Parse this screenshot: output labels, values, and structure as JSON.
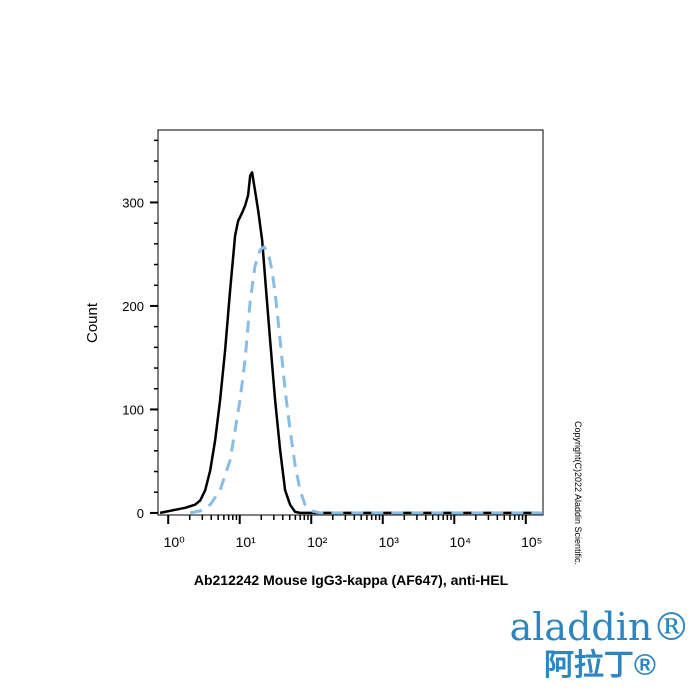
{
  "chart_data": {
    "type": "line",
    "ylabel": "Count",
    "xlabel": "Ab212242 Mouse IgG3-kappa (AF647), anti-HEL",
    "log_x": true,
    "xlim": [
      0.72,
      174000
    ],
    "ylim": [
      -2,
      370
    ],
    "xticks": [
      {
        "value": 1,
        "label": "10⁰"
      },
      {
        "value": 10,
        "label": "10¹"
      },
      {
        "value": 100,
        "label": "10²"
      },
      {
        "value": 1000,
        "label": "10³"
      },
      {
        "value": 10000,
        "label": "10⁴"
      },
      {
        "value": 100000,
        "label": "10⁵"
      }
    ],
    "xminorticks": [
      2,
      3,
      4,
      5,
      6,
      7,
      8,
      9,
      20,
      30,
      40,
      50,
      60,
      70,
      80,
      90,
      200,
      300,
      400,
      500,
      600,
      700,
      800,
      900,
      2000,
      3000,
      4000,
      5000,
      6000,
      7000,
      8000,
      9000,
      20000,
      30000,
      40000,
      50000,
      60000,
      70000,
      80000,
      90000
    ],
    "yticks": [
      0,
      100,
      200,
      300
    ],
    "yminorticks": [
      20,
      40,
      60,
      80,
      120,
      140,
      160,
      180,
      220,
      240,
      260,
      280,
      320,
      340,
      360
    ],
    "series": [
      {
        "color": "#000000",
        "dash": false,
        "x": [
          0.77,
          1.25,
          1.73,
          2.38,
          2.8,
          3.29,
          3.86,
          4.53,
          5.32,
          6.25,
          7.34,
          8.63,
          9.5,
          10.8,
          11.9,
          13.1,
          14.0,
          14.9,
          16.4,
          18.1,
          20.6,
          23.4,
          26.6,
          31.2,
          36.7,
          43.1,
          50.6,
          59.4,
          69.8,
          133,
          1740,
          173000
        ],
        "values": [
          0,
          3,
          5,
          8,
          12,
          22,
          41,
          70,
          109,
          157,
          215,
          268,
          282,
          290,
          297,
          307,
          326,
          329,
          311,
          292,
          263,
          215,
          167,
          109,
          61,
          22,
          8,
          1,
          0,
          0,
          0,
          0
        ]
      },
      {
        "color": "#88bde6",
        "dash": true,
        "x": [
          2.03,
          2.8,
          3.86,
          5.32,
          7.34,
          10.1,
          11.9,
          14.0,
          16.4,
          19.3,
          21.9,
          24.9,
          28.4,
          32.2,
          36.7,
          43.1,
          50.6,
          59.4,
          69.8,
          81.9,
          103,
          133,
          173000
        ],
        "values": [
          0,
          2,
          8,
          22,
          51,
          109,
          148,
          205,
          239,
          254,
          257,
          252,
          234,
          205,
          167,
          119,
          80,
          46,
          22,
          8,
          2,
          0,
          0
        ]
      }
    ]
  },
  "copyright": "Copyright(C)2022 Aladdin Scientific.",
  "logo": {
    "name": "aladdin®",
    "chinese": "阿拉丁®"
  }
}
